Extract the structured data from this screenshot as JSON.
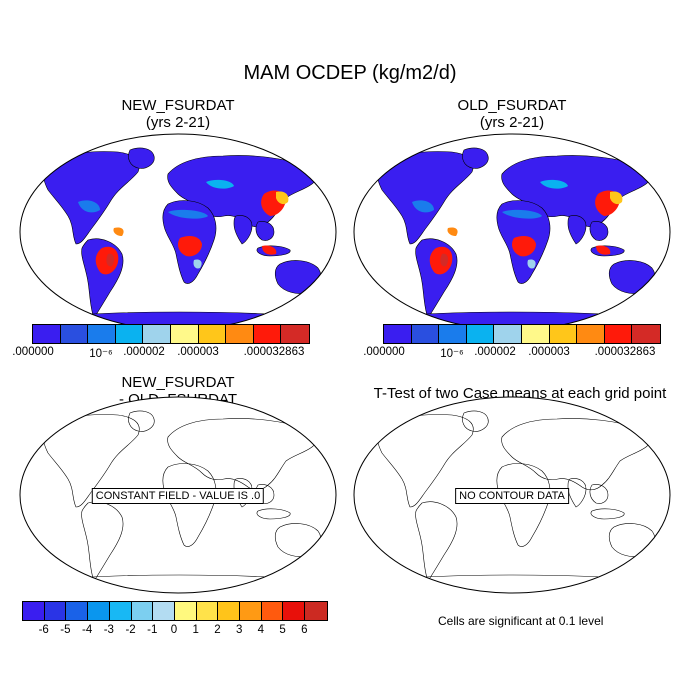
{
  "title": "MAM OCDEP (kg/m2/d)",
  "panels": {
    "top_left": {
      "title_line1": "NEW_FSURDAT",
      "title_line2": "(yrs 2-21)"
    },
    "top_right": {
      "title_line1": "OLD_FSURDAT",
      "title_line2": "(yrs 2-21)"
    },
    "bottom_left": {
      "title_line1": "NEW_FSURDAT",
      "title_line2": "- OLD_FSURDAT",
      "note": "CONSTANT FIELD - VALUE IS .0"
    },
    "bottom_right": {
      "title": "T-Test of two Case means at each grid point",
      "note": "NO CONTOUR DATA",
      "footer": "Cells are significant at 0.1 level"
    }
  },
  "colorbar_top": {
    "colors": [
      "#3a1ef0",
      "#2a4fe0",
      "#1a7cec",
      "#0ab2f0",
      "#9fd3ec",
      "#fff98a",
      "#ffc61a",
      "#ff8a12",
      "#ff1a0a",
      "#d42a26"
    ],
    "labels": [
      ".000000",
      "10⁻⁶",
      ".000002",
      ".000003",
      ".000032863"
    ]
  },
  "colorbar_bottom": {
    "colors": [
      "#3a1ef0",
      "#2a34e6",
      "#1a62e8",
      "#0a96ee",
      "#18b8f4",
      "#7ccff0",
      "#b3dcf2",
      "#fff97e",
      "#ffe24a",
      "#ffc41a",
      "#ff9a14",
      "#ff5a0e",
      "#e8100a",
      "#cc2a22"
    ],
    "labels": [
      "-6",
      "-5",
      "-4",
      "-3",
      "-2",
      "-1",
      "0",
      "1",
      "2",
      "3",
      "4",
      "5",
      "6"
    ]
  }
}
